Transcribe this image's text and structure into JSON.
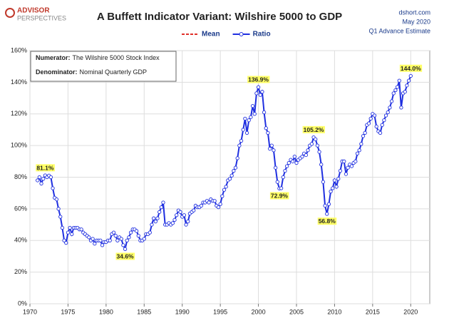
{
  "chart_data": {
    "type": "line",
    "title": "A Buffett Indicator Variant: Wilshire 5000 to GDP",
    "logo": {
      "top": "ADVISOR",
      "bottom": "PERSPECTIVES"
    },
    "source": [
      "dshort.com",
      "May 2020",
      "Q1 Advance Estimate"
    ],
    "info": [
      {
        "label": "Numerator:",
        "text": "The Wilshire 5000 Stock Index"
      },
      {
        "label": "Denominator:",
        "text": "Nominal Quarterly GDP"
      }
    ],
    "xlim": [
      1970,
      2022.5
    ],
    "xticks": [
      1970,
      1975,
      1980,
      1985,
      1990,
      1995,
      2000,
      2005,
      2010,
      2015,
      2020
    ],
    "ylim": [
      0,
      160
    ],
    "yticks": [
      {
        "value": 0,
        "label": "0%"
      },
      {
        "value": 20,
        "label": "20%"
      },
      {
        "value": 40,
        "label": "40%"
      },
      {
        "value": 60,
        "label": "60%"
      },
      {
        "value": 80,
        "label": "80%"
      },
      {
        "value": 100,
        "label": "100%"
      },
      {
        "value": 120,
        "label": "120%"
      },
      {
        "value": 140,
        "label": "140%"
      },
      {
        "value": 160,
        "label": "160%"
      }
    ],
    "grid": true,
    "x": [
      1971,
      1971.25,
      1971.5,
      1971.75,
      1972,
      1972.25,
      1972.5,
      1972.75,
      1973,
      1973.25,
      1973.5,
      1973.75,
      1974,
      1974.25,
      1974.5,
      1974.75,
      1975,
      1975.25,
      1975.5,
      1975.75,
      1976,
      1976.25,
      1976.5,
      1976.75,
      1977,
      1977.25,
      1977.5,
      1977.75,
      1978,
      1978.25,
      1978.5,
      1978.75,
      1979,
      1979.25,
      1979.5,
      1979.75,
      1980,
      1980.25,
      1980.5,
      1980.75,
      1981,
      1981.25,
      1981.5,
      1981.75,
      1982,
      1982.25,
      1982.5,
      1982.75,
      1983,
      1983.25,
      1983.5,
      1983.75,
      1984,
      1984.25,
      1984.5,
      1984.75,
      1985,
      1985.25,
      1985.5,
      1985.75,
      1986,
      1986.25,
      1986.5,
      1986.75,
      1987,
      1987.25,
      1987.5,
      1987.75,
      1988,
      1988.25,
      1988.5,
      1988.75,
      1989,
      1989.25,
      1989.5,
      1989.75,
      1990,
      1990.25,
      1990.5,
      1990.75,
      1991,
      1991.25,
      1991.5,
      1991.75,
      1992,
      1992.25,
      1992.5,
      1992.75,
      1993,
      1993.25,
      1993.5,
      1993.75,
      1994,
      1994.25,
      1994.5,
      1994.75,
      1995,
      1995.25,
      1995.5,
      1995.75,
      1996,
      1996.25,
      1996.5,
      1996.75,
      1997,
      1997.25,
      1997.5,
      1997.75,
      1998,
      1998.25,
      1998.5,
      1998.75,
      1999,
      1999.25,
      1999.5,
      1999.75,
      2000,
      2000.25,
      2000.5,
      2000.75,
      2001,
      2001.25,
      2001.5,
      2001.75,
      2002,
      2002.25,
      2002.5,
      2002.75,
      2003,
      2003.25,
      2003.5,
      2003.75,
      2004,
      2004.25,
      2004.5,
      2004.75,
      2005,
      2005.25,
      2005.5,
      2005.75,
      2006,
      2006.25,
      2006.5,
      2006.75,
      2007,
      2007.25,
      2007.5,
      2007.75,
      2008,
      2008.25,
      2008.5,
      2008.75,
      2009,
      2009.25,
      2009.5,
      2009.75,
      2010,
      2010.25,
      2010.5,
      2010.75,
      2011,
      2011.25,
      2011.5,
      2011.75,
      2012,
      2012.25,
      2012.5,
      2012.75,
      2013,
      2013.25,
      2013.5,
      2013.75,
      2014,
      2014.25,
      2014.5,
      2014.75,
      2015,
      2015.25,
      2015.5,
      2015.75,
      2016,
      2016.25,
      2016.5,
      2016.75,
      2017,
      2017.25,
      2017.5,
      2017.75,
      2018,
      2018.25,
      2018.5,
      2018.75,
      2019,
      2019.25,
      2019.5,
      2019.75,
      2020
    ],
    "series": [
      {
        "name": "Mean",
        "color": "#e0302a",
        "dashed": true
      },
      {
        "name": "Ratio",
        "color": "#1f2fe0",
        "values": [
          78,
          80,
          76,
          79,
          81.1,
          80,
          81,
          80,
          73,
          67,
          66,
          60,
          55,
          48,
          40,
          38.5,
          45,
          48,
          44,
          48,
          48,
          48,
          47,
          47,
          45,
          44,
          43,
          42,
          40,
          41,
          38,
          40,
          40,
          40,
          37,
          39,
          39,
          40,
          40,
          44,
          45,
          43,
          40,
          42,
          41,
          37,
          34.6,
          40,
          42,
          45,
          47,
          47,
          46,
          43,
          40,
          40,
          41,
          44,
          44,
          45,
          50,
          54,
          52,
          54,
          58,
          61,
          64,
          50,
          50,
          51,
          50,
          51,
          53,
          56,
          59,
          58,
          55,
          56,
          50,
          52,
          57,
          58,
          59,
          62,
          61,
          61,
          62,
          64,
          64,
          65,
          64,
          66,
          65,
          65,
          62,
          61,
          63,
          68,
          72,
          74,
          78,
          79,
          81,
          84,
          86,
          92,
          100,
          103,
          110,
          117,
          108,
          116,
          118,
          125,
          120,
          133,
          136.9,
          132,
          134,
          121,
          111,
          108,
          98,
          100,
          97,
          86,
          77,
          72.9,
          73,
          80,
          84,
          87,
          89,
          91,
          90,
          93,
          89,
          91,
          92,
          93,
          95,
          94,
          97,
          100,
          101,
          105.2,
          104,
          100,
          96,
          88,
          77,
          62,
          56.8,
          63,
          71,
          73,
          78,
          74,
          79,
          84,
          90,
          90,
          82,
          86,
          88,
          87,
          89,
          90,
          95,
          97,
          101,
          106,
          108,
          113,
          114,
          117,
          120,
          119,
          112,
          109,
          108,
          113,
          116,
          119,
          121,
          124,
          128,
          133,
          135,
          137,
          141,
          124,
          133,
          134,
          138,
          141,
          144.0
        ]
      }
    ],
    "annotations": [
      {
        "label": "81.1%",
        "x": 1972,
        "value": 81.1,
        "side": "above"
      },
      {
        "label": "34.6%",
        "x": 1982.5,
        "value": 34.6,
        "side": "below"
      },
      {
        "label": "136.9%",
        "x": 2000,
        "value": 136.9,
        "side": "above"
      },
      {
        "label": "72.9%",
        "x": 2002.75,
        "value": 72.9,
        "side": "below"
      },
      {
        "label": "105.2%",
        "x": 2007.25,
        "value": 105.2,
        "side": "above"
      },
      {
        "label": "56.8%",
        "x": 2009,
        "value": 56.8,
        "side": "below"
      },
      {
        "label": "144.0%",
        "x": 2020,
        "value": 144.0,
        "side": "above"
      }
    ]
  }
}
